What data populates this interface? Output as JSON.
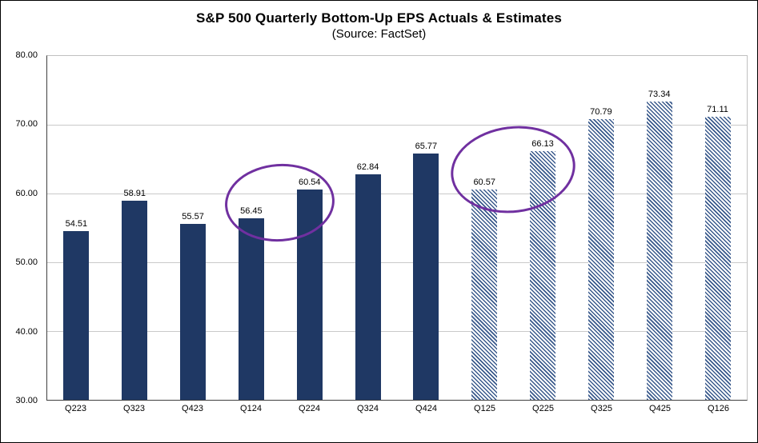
{
  "chart_data": {
    "type": "bar",
    "title": "S&P 500 Quarterly Bottom-Up EPS Actuals & Estimates",
    "subtitle": "(Source: FactSet)",
    "categories": [
      "Q223",
      "Q323",
      "Q423",
      "Q124",
      "Q224",
      "Q324",
      "Q424",
      "Q125",
      "Q225",
      "Q325",
      "Q425",
      "Q126"
    ],
    "values": [
      54.51,
      58.91,
      55.57,
      56.45,
      60.54,
      62.84,
      65.77,
      60.57,
      66.13,
      70.79,
      73.34,
      71.11
    ],
    "bar_styles": [
      "solid",
      "solid",
      "solid",
      "solid",
      "solid",
      "solid",
      "solid",
      "hatched",
      "hatched",
      "hatched",
      "hatched",
      "hatched"
    ],
    "series_meaning": {
      "solid": "Actuals",
      "hatched": "Estimates"
    },
    "ylim": [
      30,
      80
    ],
    "ytick_step": 10,
    "ytick_labels": [
      "80.00",
      "70.00",
      "60.00",
      "50.00",
      "40.00",
      "30.00"
    ],
    "grid": true,
    "legend": "none",
    "colors": {
      "bar_solid": "#1f3864",
      "hatch": "#3a5a8c",
      "annotation": "#7030a0",
      "grid": "#c9c9c9",
      "border": "#000000"
    },
    "annotations": [
      {
        "type": "ellipse",
        "circled_categories": [
          "Q124",
          "Q224"
        ],
        "circled_values": [
          56.45,
          60.54
        ]
      },
      {
        "type": "ellipse",
        "circled_categories": [
          "Q125",
          "Q225"
        ],
        "circled_values": [
          60.57,
          66.13
        ]
      }
    ]
  }
}
